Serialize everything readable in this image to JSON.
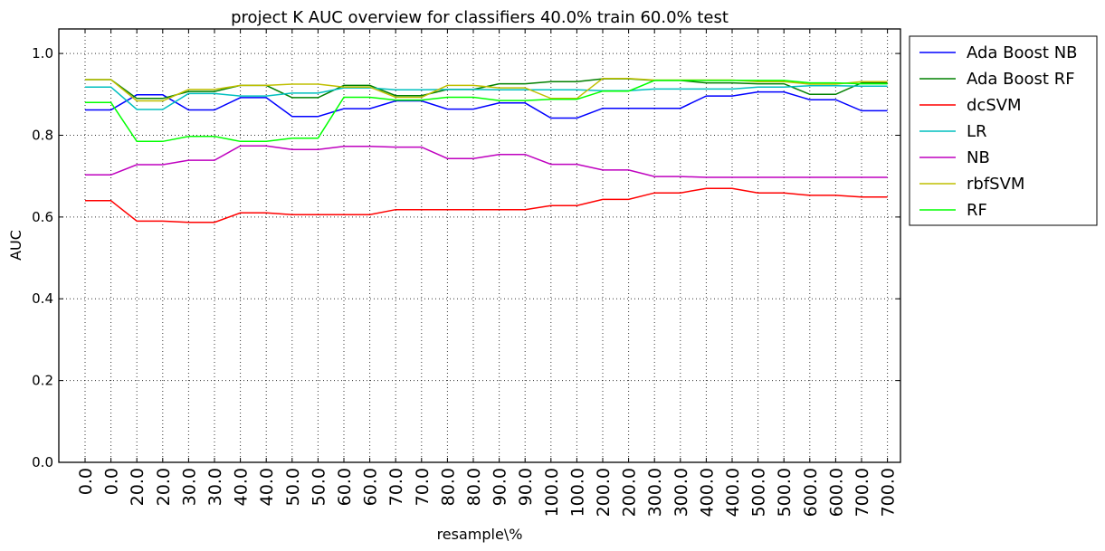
{
  "chart_data": {
    "type": "line",
    "title": "project K AUC overview for classifiers 40.0% train 60.0% test",
    "xlabel": "resample\\%",
    "ylabel": "AUC",
    "ylim": [
      0.0,
      1.06
    ],
    "yticks": [
      "0.0",
      "0.2",
      "0.4",
      "0.6",
      "0.8",
      "1.0"
    ],
    "ytick_values": [
      0.0,
      0.2,
      0.4,
      0.6,
      0.8,
      1.0
    ],
    "categories": [
      "0.0",
      "0.0",
      "20.0",
      "20.0",
      "30.0",
      "30.0",
      "40.0",
      "40.0",
      "50.0",
      "50.0",
      "60.0",
      "60.0",
      "70.0",
      "70.0",
      "80.0",
      "80.0",
      "90.0",
      "90.0",
      "100.0",
      "100.0",
      "200.0",
      "200.0",
      "300.0",
      "300.0",
      "400.0",
      "400.0",
      "500.0",
      "500.0",
      "600.0",
      "600.0",
      "700.0",
      "700.0"
    ],
    "grid": true,
    "legend_position": "outside-right",
    "series": [
      {
        "name": "Ada Boost NB",
        "color": "#0000ff",
        "values": [
          0.862,
          0.862,
          0.899,
          0.899,
          0.862,
          0.862,
          0.892,
          0.892,
          0.846,
          0.846,
          0.865,
          0.865,
          0.884,
          0.884,
          0.864,
          0.864,
          0.879,
          0.879,
          0.842,
          0.842,
          0.866,
          0.866,
          0.866,
          0.866,
          0.896,
          0.896,
          0.906,
          0.906,
          0.887,
          0.887,
          0.86,
          0.86
        ]
      },
      {
        "name": "Ada Boost RF",
        "color": "#008000",
        "values": [
          0.936,
          0.936,
          0.89,
          0.89,
          0.907,
          0.907,
          0.922,
          0.922,
          0.892,
          0.892,
          0.922,
          0.922,
          0.897,
          0.897,
          0.912,
          0.912,
          0.926,
          0.926,
          0.931,
          0.931,
          0.938,
          0.938,
          0.934,
          0.934,
          0.928,
          0.928,
          0.926,
          0.926,
          0.9,
          0.9,
          0.928,
          0.928
        ]
      },
      {
        "name": "dcSVM",
        "color": "#ff0000",
        "values": [
          0.64,
          0.64,
          0.59,
          0.59,
          0.587,
          0.587,
          0.61,
          0.61,
          0.606,
          0.606,
          0.606,
          0.606,
          0.618,
          0.618,
          0.618,
          0.618,
          0.618,
          0.618,
          0.628,
          0.628,
          0.643,
          0.643,
          0.659,
          0.659,
          0.67,
          0.67,
          0.659,
          0.659,
          0.653,
          0.653,
          0.649,
          0.649
        ]
      },
      {
        "name": "LR",
        "color": "#00bfbf",
        "values": [
          0.918,
          0.918,
          0.863,
          0.863,
          0.902,
          0.902,
          0.896,
          0.896,
          0.903,
          0.903,
          0.916,
          0.916,
          0.911,
          0.911,
          0.912,
          0.912,
          0.911,
          0.911,
          0.911,
          0.911,
          0.909,
          0.909,
          0.913,
          0.913,
          0.913,
          0.913,
          0.918,
          0.918,
          0.921,
          0.921,
          0.92,
          0.92
        ]
      },
      {
        "name": "NB",
        "color": "#bf00bf",
        "values": [
          0.703,
          0.703,
          0.728,
          0.728,
          0.739,
          0.739,
          0.774,
          0.774,
          0.765,
          0.765,
          0.773,
          0.773,
          0.771,
          0.771,
          0.743,
          0.743,
          0.753,
          0.753,
          0.729,
          0.729,
          0.715,
          0.715,
          0.699,
          0.699,
          0.697,
          0.697,
          0.697,
          0.697,
          0.697,
          0.697,
          0.697,
          0.697
        ]
      },
      {
        "name": "rbfSVM",
        "color": "#bfbf00",
        "values": [
          0.936,
          0.936,
          0.884,
          0.884,
          0.912,
          0.912,
          0.922,
          0.922,
          0.925,
          0.925,
          0.918,
          0.918,
          0.893,
          0.893,
          0.922,
          0.922,
          0.916,
          0.916,
          0.89,
          0.89,
          0.939,
          0.939,
          0.935,
          0.935,
          0.935,
          0.935,
          0.931,
          0.931,
          0.925,
          0.925,
          0.931,
          0.931
        ]
      },
      {
        "name": "RF",
        "color": "#00ff00",
        "values": [
          0.88,
          0.88,
          0.785,
          0.785,
          0.797,
          0.797,
          0.785,
          0.785,
          0.793,
          0.793,
          0.893,
          0.893,
          0.886,
          0.886,
          0.893,
          0.893,
          0.885,
          0.885,
          0.888,
          0.888,
          0.908,
          0.908,
          0.934,
          0.934,
          0.934,
          0.934,
          0.934,
          0.934,
          0.928,
          0.928,
          0.926,
          0.926
        ]
      }
    ]
  }
}
